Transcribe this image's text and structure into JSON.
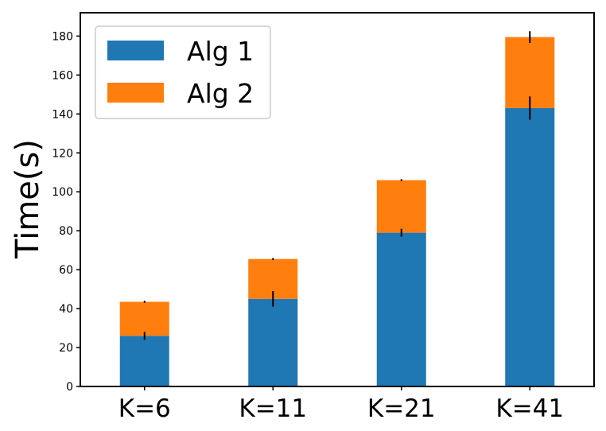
{
  "chart_data": {
    "type": "bar",
    "stacked": true,
    "categories": [
      "K=6",
      "K=11",
      "K=21",
      "K=41"
    ],
    "series": [
      {
        "name": "Alg 1",
        "color": "#1f77b4",
        "values": [
          26,
          45,
          79,
          143
        ],
        "error": [
          2,
          4,
          2,
          6
        ]
      },
      {
        "name": "Alg 2",
        "color": "#ff7f0e",
        "values": [
          17.5,
          20.5,
          27,
          36.5
        ],
        "error": [
          0.5,
          0.5,
          0.5,
          3
        ]
      }
    ],
    "ylabel": "Time(s)",
    "xlabel": "",
    "ylim": [
      0,
      192
    ],
    "yticks": [
      "0",
      "20",
      "40",
      "60",
      "80",
      "100",
      "120",
      "140",
      "160",
      "180"
    ],
    "legend_position": "top-left",
    "grid": false
  }
}
